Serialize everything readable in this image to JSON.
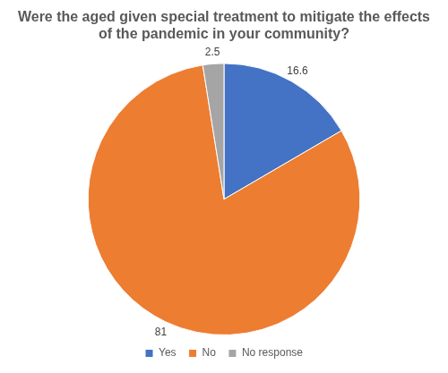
{
  "chart_data": {
    "type": "pie",
    "title": "Were the aged given special treatment to mitigate the effects of the pandemic in your community?",
    "categories": [
      "Yes",
      "No",
      "No response"
    ],
    "values": [
      16.6,
      81,
      2.5
    ],
    "colors": [
      "#4472c4",
      "#ed7d31",
      "#a5a5a5"
    ],
    "data_labels": true,
    "legend": "bottom"
  }
}
